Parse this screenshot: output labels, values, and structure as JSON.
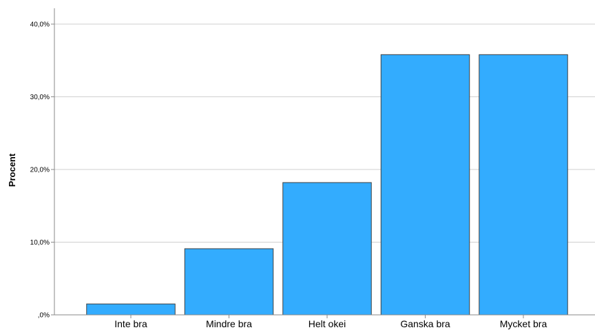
{
  "chart_data": {
    "type": "bar",
    "ylabel": "Procent",
    "xlabel": "",
    "categories": [
      "Inte bra",
      "Mindre bra",
      "Helt okei",
      "Ganska bra",
      "Mycket bra"
    ],
    "values": [
      1.5,
      9.1,
      18.2,
      35.8,
      35.8
    ],
    "ylim": [
      0,
      40
    ],
    "yticks": [
      0,
      10,
      20,
      30,
      40
    ],
    "ytick_labels": [
      ",0%",
      "10,0%",
      "20,0%",
      "30,0%",
      "40,0%"
    ],
    "grid": true,
    "legend": "none",
    "colors": {
      "bar_fill": "#33acfe",
      "bar_stroke": "#404040",
      "grid": "#cfcfcf",
      "axis": "#8a8a8a"
    }
  }
}
